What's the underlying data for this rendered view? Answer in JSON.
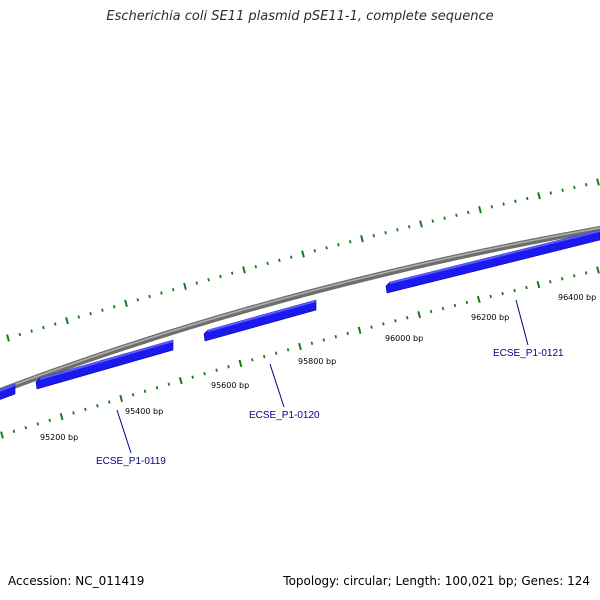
{
  "title": "Escherichia coli SE11 plasmid pSE11-1, complete sequence",
  "footer": {
    "accession": "Accession: NC_011419",
    "summary": "Topology: circular; Length: 100,021 bp; Genes: 124"
  },
  "colors": {
    "backbone": "#8a8a8a",
    "gene_fill": "#1a1aee",
    "gene_top": "#5a5aff",
    "tick": "#1a7a1a",
    "gene_label": "#00008b",
    "bp_label": "#000000"
  },
  "bp_labels": [
    {
      "text": "95200 bp"
    },
    {
      "text": "95400 bp"
    },
    {
      "text": "95600 bp"
    },
    {
      "text": "95800 bp"
    },
    {
      "text": "96000 bp"
    },
    {
      "text": "96200 bp"
    },
    {
      "text": "96400 bp"
    }
  ],
  "gene_labels": [
    {
      "text": "ECSE_P1-0119"
    },
    {
      "text": "ECSE_P1-0120"
    },
    {
      "text": "ECSE_P1-0121"
    }
  ]
}
